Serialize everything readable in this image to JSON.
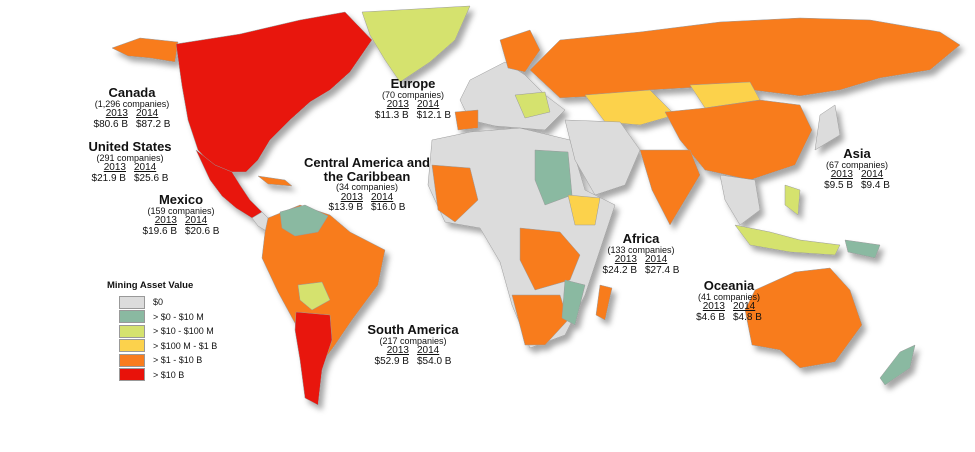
{
  "legend": {
    "title": "Mining Asset Value",
    "items": [
      {
        "label": "$0",
        "color": "#dcdcdc"
      },
      {
        "label": "> $0 - $10 M",
        "color": "#8ab9a1"
      },
      {
        "label": "> $10 - $100 M",
        "color": "#d5e26e"
      },
      {
        "label": "> $100 M - $1 B",
        "color": "#fcd24c"
      },
      {
        "label": "> $1 - $10 B",
        "color": "#f87c1e"
      },
      {
        "label": "> $10 B",
        "color": "#e8120a"
      }
    ]
  },
  "regions": [
    {
      "name": "Canada",
      "companies": "(1,296 companies)",
      "year1": "2013",
      "year2": "2014",
      "value1": "$80.6 B",
      "value2": "$87.2 B"
    },
    {
      "name": "United States",
      "companies": "(291 companies)",
      "year1": "2013",
      "year2": "2014",
      "value1": "$21.9 B",
      "value2": "$25.6 B"
    },
    {
      "name": "Mexico",
      "companies": "(159 companies)",
      "year1": "2013",
      "year2": "2014",
      "value1": "$19.6 B",
      "value2": "$20.6 B"
    },
    {
      "name": "Central America and the Caribbean",
      "companies": "(34 companies)",
      "year1": "2013",
      "year2": "2014",
      "value1": "$13.9 B",
      "value2": "$16.0 B"
    },
    {
      "name": "Europe",
      "companies": "(70 companies)",
      "year1": "2013",
      "year2": "2014",
      "value1": "$11.3 B",
      "value2": "$12.1 B"
    },
    {
      "name": "Africa",
      "companies": "(133 companies)",
      "year1": "2013",
      "year2": "2014",
      "value1": "$24.2 B",
      "value2": "$27.4 B"
    },
    {
      "name": "Asia",
      "companies": "(67 companies)",
      "year1": "2013",
      "year2": "2014",
      "value1": "$9.5 B",
      "value2": "$9.4 B"
    },
    {
      "name": "Oceania",
      "companies": "(41 companies)",
      "year1": "2013",
      "year2": "2014",
      "value1": "$4.6 B",
      "value2": "$4.8 B"
    },
    {
      "name": "South America",
      "companies": "(217 companies)",
      "year1": "2013",
      "year2": "2014",
      "value1": "$52.9 B",
      "value2": "$54.0 B"
    }
  ]
}
